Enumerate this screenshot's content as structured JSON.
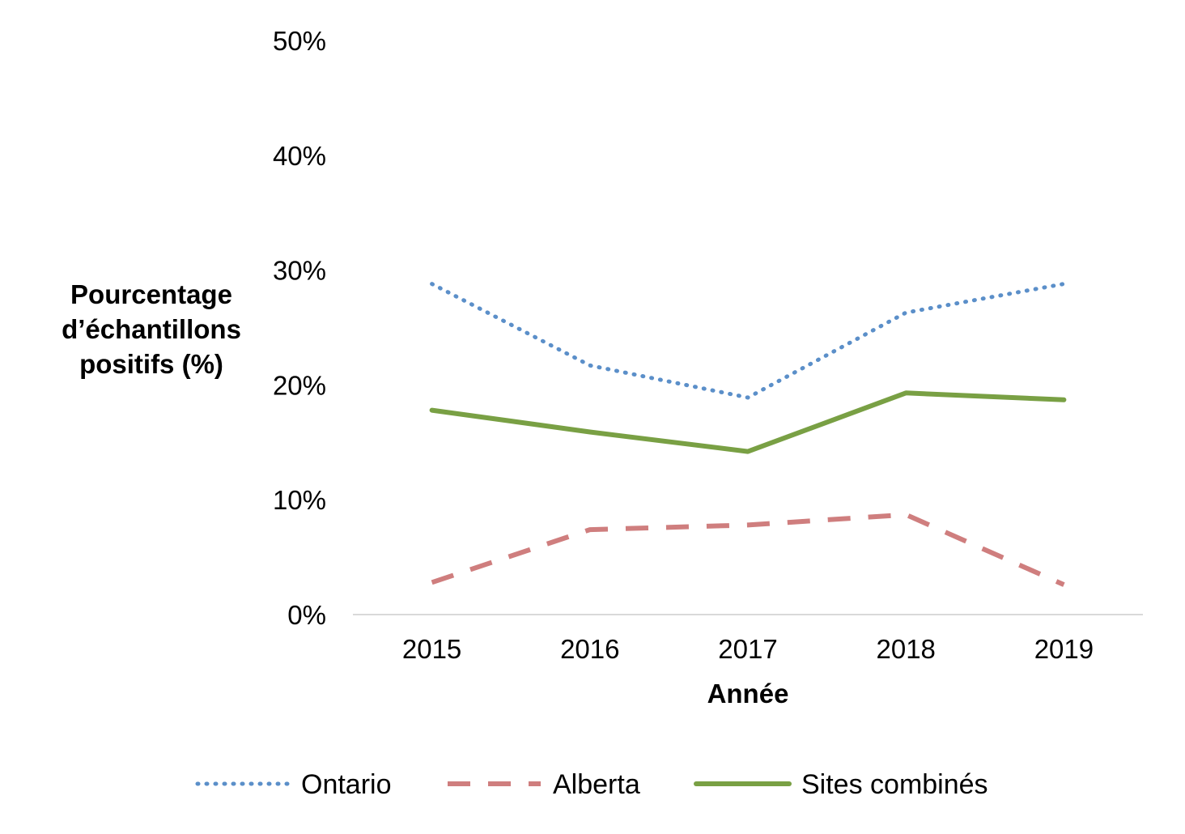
{
  "chart_data": {
    "type": "line",
    "title": "",
    "xlabel": "Année",
    "ylabel": "Pourcentage d’échantillons positifs (%)",
    "ylabel_lines": [
      "Pourcentage",
      "d’échantillons",
      "positifs (%)"
    ],
    "categories": [
      "2015",
      "2016",
      "2017",
      "2018",
      "2019"
    ],
    "ylim": [
      0,
      50
    ],
    "y_ticks": [
      0,
      10,
      20,
      30,
      40,
      50
    ],
    "y_tick_labels": [
      "0%",
      "10%",
      "20%",
      "30%",
      "40%",
      "50%"
    ],
    "grid": false,
    "legend_position": "bottom",
    "series": [
      {
        "name": "Ontario",
        "values": [
          28.8,
          21.7,
          18.9,
          26.3,
          28.8
        ],
        "color": "#5b8fc9",
        "style": "dotted"
      },
      {
        "name": "Alberta",
        "values": [
          2.8,
          7.4,
          7.8,
          8.7,
          2.6
        ],
        "color": "#cf7e7e",
        "style": "dashed"
      },
      {
        "name": "Sites combinés",
        "values": [
          17.8,
          15.9,
          14.2,
          19.3,
          18.7
        ],
        "color": "#79a044",
        "style": "solid"
      }
    ]
  }
}
